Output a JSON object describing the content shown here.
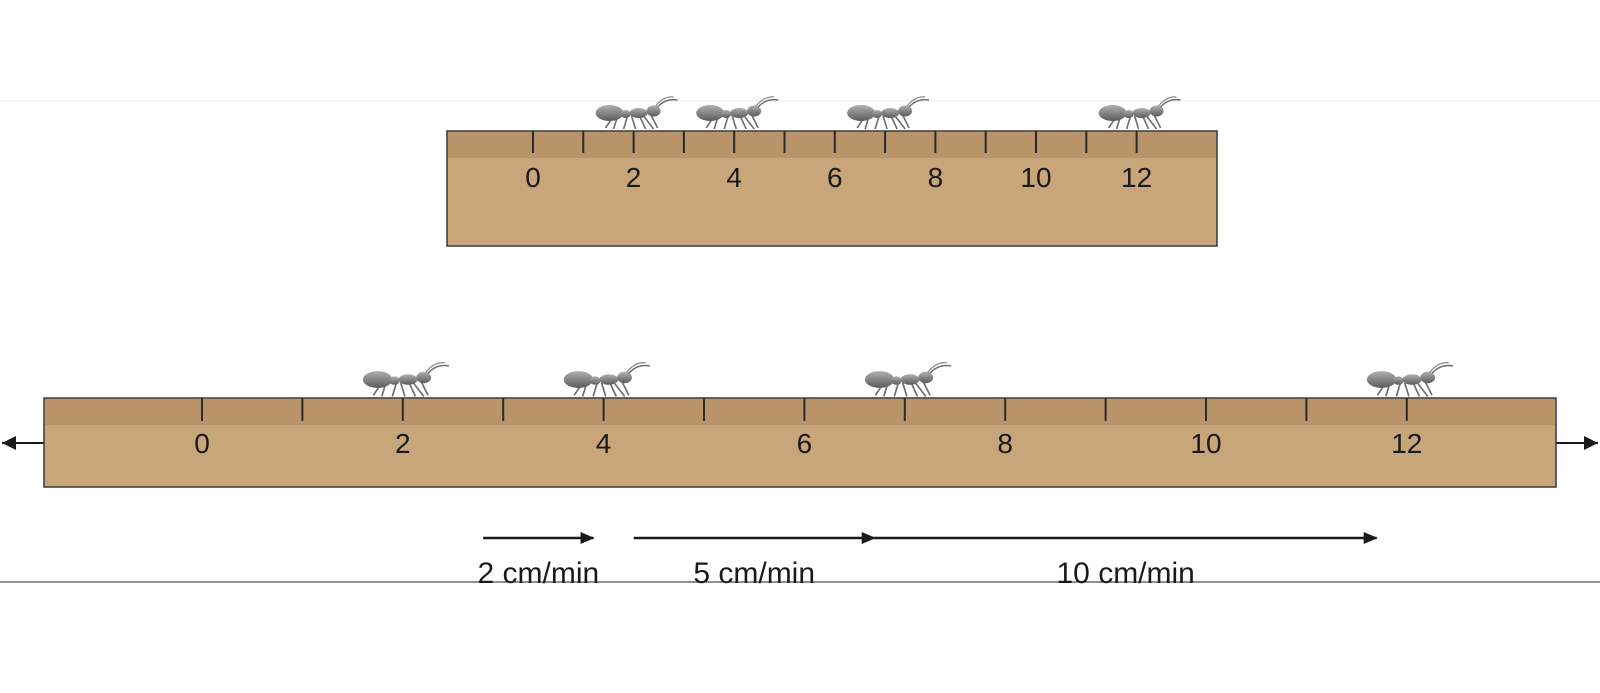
{
  "rulers": [
    {
      "id": "top",
      "labels": [
        "0",
        "2",
        "4",
        "6",
        "8",
        "10",
        "12"
      ],
      "tick_values": [
        0,
        1,
        2,
        3,
        4,
        5,
        6,
        7,
        8,
        9,
        10,
        11,
        12
      ],
      "ant_positions_cm": [
        2,
        4,
        7,
        12
      ]
    },
    {
      "id": "bottom",
      "labels": [
        "0",
        "2",
        "4",
        "6",
        "8",
        "10",
        "12"
      ],
      "tick_values": [
        0,
        1,
        2,
        3,
        4,
        5,
        6,
        7,
        8,
        9,
        10,
        11,
        12
      ],
      "ant_positions_cm": [
        2,
        4,
        7,
        12
      ],
      "extends_both_directions": true
    }
  ],
  "speed_arrows": [
    {
      "label": "2 cm/min",
      "from_cm": 2.8,
      "to_cm": 3.9
    },
    {
      "label": "5 cm/min",
      "from_cm": 4.3,
      "to_cm": 6.7
    },
    {
      "label": "10 cm/min",
      "from_cm": 6.7,
      "to_cm": 11.7
    }
  ],
  "colors": {
    "wood": "#c9a57a",
    "wood_band": "#b9946a",
    "outline": "#3a3a3a",
    "ant": "#7a7a7a"
  }
}
